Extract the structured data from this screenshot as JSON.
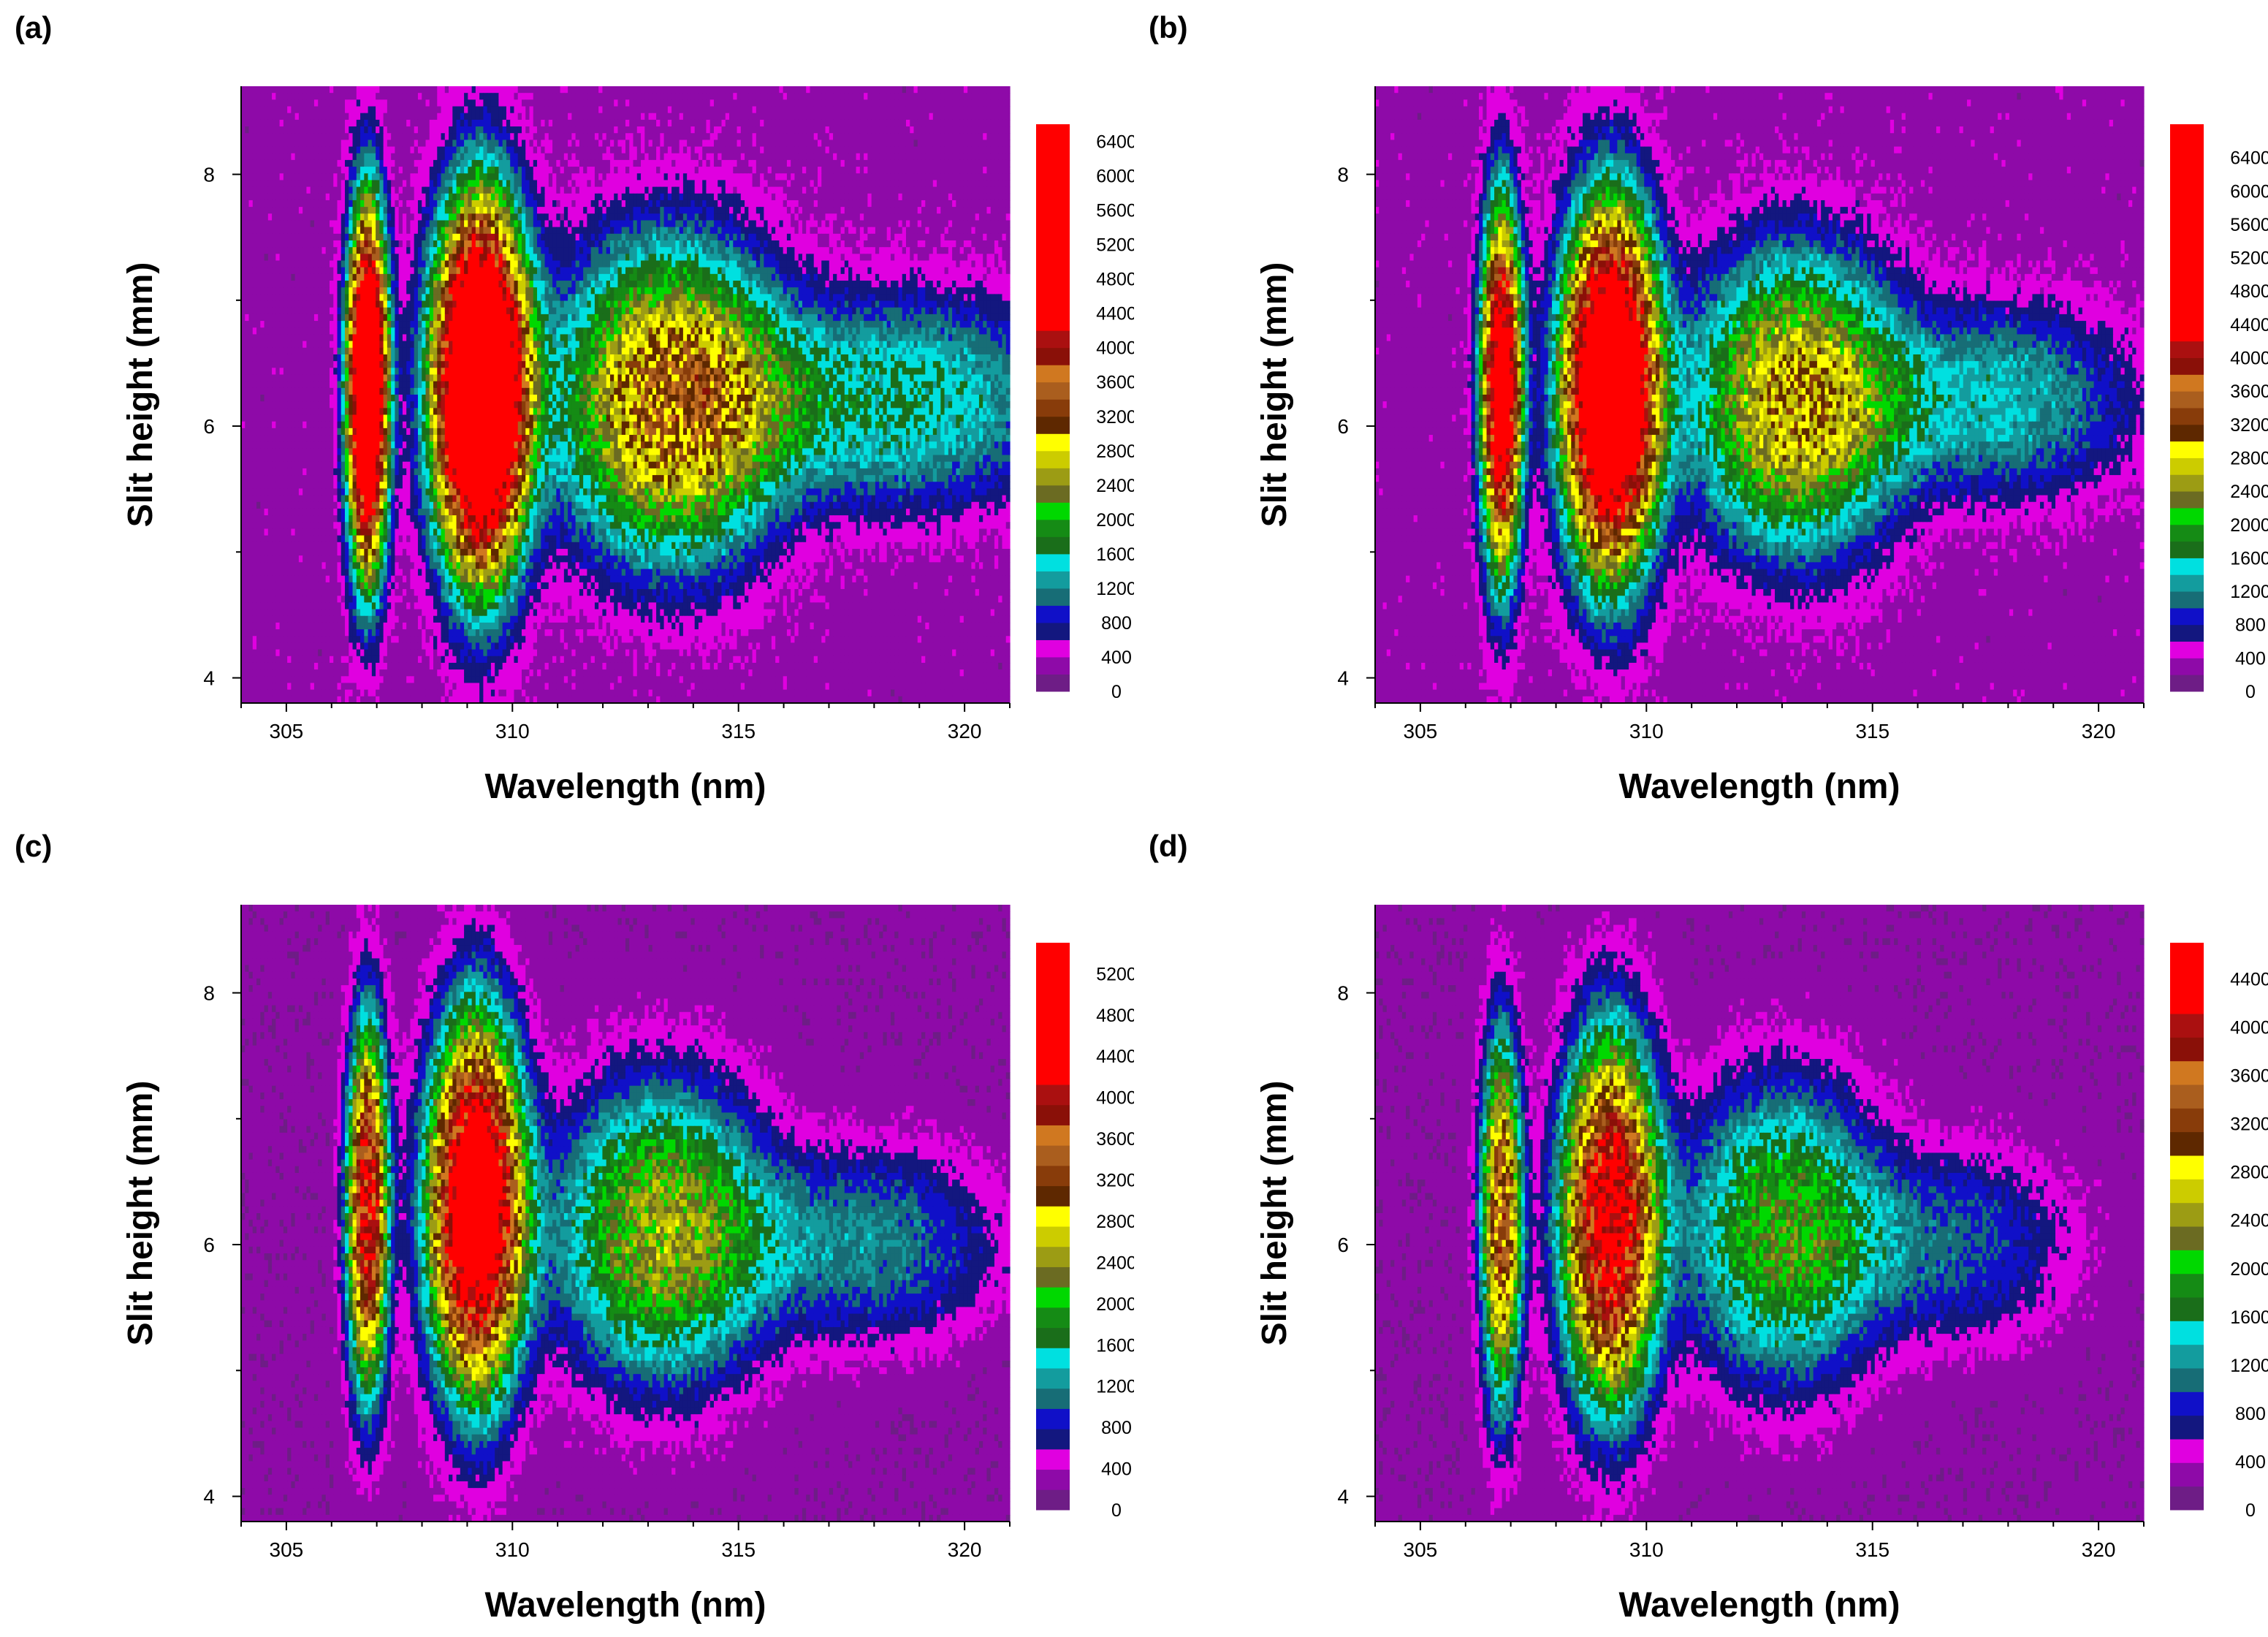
{
  "colors": {
    "levels": [
      "#6e1d86",
      "#8e0aa8",
      "#e000e0",
      "#13177f",
      "#1010c8",
      "#176d76",
      "#139c9e",
      "#00e0e0",
      "#1a6e1a",
      "#158b15",
      "#00d800",
      "#6b6b22",
      "#9c9c14",
      "#cccc00",
      "#ffff00",
      "#5e2800",
      "#883c0a",
      "#aa5e1e",
      "#d07820",
      "#8a1008",
      "#aa1010",
      "#ff0000"
    ],
    "axis": "#000000",
    "band_edge": "#0b0b3a"
  },
  "chart_data": [
    {
      "panel_label": "(a)",
      "type": "heatmap",
      "xlabel": "Wavelength (nm)",
      "ylabel": "Slit height (mm)",
      "xlim": [
        304,
        321
      ],
      "ylim": [
        3.8,
        8.7
      ],
      "xticks": [
        305,
        310,
        315,
        320
      ],
      "yticks": [
        4,
        6,
        8
      ],
      "colorbar": {
        "ticks": [
          0,
          400,
          800,
          1200,
          1600,
          2000,
          2400,
          2800,
          3200,
          3600,
          4000,
          4400,
          4800,
          5200,
          5600,
          6000,
          6400
        ],
        "max": 6600,
        "step": 200
      },
      "features": [
        {
          "center_nm": 306.8,
          "center_mm": 6.3,
          "width_nm": 0.55,
          "height_mm": 1.75,
          "peak": 5900
        },
        {
          "center_nm": 309.3,
          "center_mm": 6.3,
          "width_nm": 1.3,
          "height_mm": 1.8,
          "peak": 6300
        },
        {
          "center_nm": 313.5,
          "center_mm": 6.2,
          "width_nm": 3.0,
          "height_mm": 1.5,
          "peak": 2900
        },
        {
          "center_nm": 318.5,
          "center_mm": 6.2,
          "width_nm": 4.5,
          "height_mm": 1.0,
          "peak": 1300
        }
      ],
      "background": 300
    },
    {
      "panel_label": "(b)",
      "type": "heatmap",
      "xlabel": "Wavelength (nm)",
      "ylabel": "Slit height (mm)",
      "xlim": [
        304,
        321
      ],
      "ylim": [
        3.8,
        8.7
      ],
      "xticks": [
        305,
        310,
        315,
        320
      ],
      "yticks": [
        4,
        6,
        8
      ],
      "colorbar": {
        "ticks": [
          0,
          400,
          800,
          1200,
          1600,
          2000,
          2400,
          2800,
          3200,
          3600,
          4000,
          4400,
          4800,
          5200,
          5600,
          6000,
          6400
        ],
        "max": 6800,
        "step": 200
      },
      "features": [
        {
          "center_nm": 306.8,
          "center_mm": 6.3,
          "width_nm": 0.55,
          "height_mm": 1.75,
          "peak": 4800
        },
        {
          "center_nm": 309.2,
          "center_mm": 6.3,
          "width_nm": 1.3,
          "height_mm": 1.75,
          "peak": 5700
        },
        {
          "center_nm": 313.3,
          "center_mm": 6.2,
          "width_nm": 2.8,
          "height_mm": 1.4,
          "peak": 2600
        },
        {
          "center_nm": 317.8,
          "center_mm": 6.2,
          "width_nm": 3.5,
          "height_mm": 0.9,
          "peak": 1100
        }
      ],
      "background": 300
    },
    {
      "panel_label": "(c)",
      "type": "heatmap",
      "xlabel": "Wavelength (nm)",
      "ylabel": "Slit height (mm)",
      "xlim": [
        304,
        321
      ],
      "ylim": [
        3.8,
        8.7
      ],
      "xticks": [
        305,
        310,
        315,
        320
      ],
      "yticks": [
        4,
        6,
        8
      ],
      "colorbar": {
        "ticks": [
          0,
          400,
          800,
          1200,
          1600,
          2000,
          2400,
          2800,
          3200,
          3600,
          4000,
          4400,
          4800,
          5200
        ],
        "max": 5500,
        "step": 200
      },
      "features": [
        {
          "center_nm": 306.8,
          "center_mm": 6.3,
          "width_nm": 0.55,
          "height_mm": 1.75,
          "peak": 4000
        },
        {
          "center_nm": 309.2,
          "center_mm": 6.3,
          "width_nm": 1.3,
          "height_mm": 1.8,
          "peak": 5000
        },
        {
          "center_nm": 313.3,
          "center_mm": 6.1,
          "width_nm": 2.8,
          "height_mm": 1.4,
          "peak": 2200
        },
        {
          "center_nm": 317.8,
          "center_mm": 6.0,
          "width_nm": 3.5,
          "height_mm": 0.9,
          "peak": 950
        }
      ],
      "background": 250
    },
    {
      "panel_label": "(d)",
      "type": "heatmap",
      "xlabel": "Wavelength (nm)",
      "ylabel": "Slit height (mm)",
      "xlim": [
        304,
        321
      ],
      "ylim": [
        3.8,
        8.7
      ],
      "xticks": [
        305,
        310,
        315,
        320
      ],
      "yticks": [
        4,
        6,
        8
      ],
      "colorbar": {
        "ticks": [
          0,
          400,
          800,
          1200,
          1600,
          2000,
          2400,
          2800,
          3200,
          3600,
          4000,
          4400
        ],
        "max": 4700,
        "step": 200
      },
      "features": [
        {
          "center_nm": 306.8,
          "center_mm": 6.2,
          "width_nm": 0.55,
          "height_mm": 1.75,
          "peak": 3200
        },
        {
          "center_nm": 309.2,
          "center_mm": 6.2,
          "width_nm": 1.3,
          "height_mm": 1.75,
          "peak": 4300
        },
        {
          "center_nm": 313.0,
          "center_mm": 6.1,
          "width_nm": 2.6,
          "height_mm": 1.4,
          "peak": 1900
        },
        {
          "center_nm": 316.8,
          "center_mm": 6.0,
          "width_nm": 3.0,
          "height_mm": 0.9,
          "peak": 800
        }
      ],
      "background": 250
    }
  ]
}
